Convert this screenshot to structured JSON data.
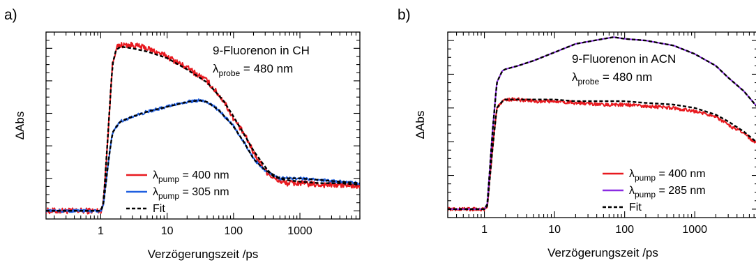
{
  "chart_data": [
    {
      "type": "line",
      "panel_label": "a)",
      "xlabel": "Verzögerungszeit /ps",
      "ylabel": "ΔAbs",
      "xscale": "log",
      "xlim": [
        0.15,
        8000
      ],
      "ylim": [
        -0.05,
        1.1
      ],
      "x_ticks": [
        1,
        10,
        100,
        1000
      ],
      "x_tick_labels": [
        "1",
        "10",
        "100",
        "1000"
      ],
      "y_tick_labels_shown": false,
      "annotation_line1": "9-Fluorenon in CH",
      "annotation_probe_sym": "λ",
      "annotation_probe_sub": "probe",
      "annotation_probe_val": " = 480 nm",
      "legend": [
        {
          "sym": "λ",
          "sub": "pump",
          "val": " = 400 nm",
          "color": "#e8191f",
          "dash": false
        },
        {
          "sym": "λ",
          "sub": "pump",
          "val": " = 305 nm",
          "color": "#1f5fe0",
          "dash": false
        },
        {
          "sym": "",
          "sub": "",
          "val": "Fit",
          "color": "#000000",
          "dash": true
        }
      ],
      "series": [
        {
          "color": "#e8191f",
          "noise": 0.018,
          "x": [
            0.15,
            0.5,
            1.0,
            1.1,
            1.3,
            1.5,
            1.7,
            2,
            3,
            5,
            10,
            20,
            40,
            70,
            100,
            150,
            200,
            300,
            400,
            600,
            1000,
            2000,
            4000,
            8000
          ],
          "y": [
            0.0,
            0.0,
            0.0,
            0.05,
            0.5,
            0.9,
            1.0,
            1.02,
            1.02,
            1.0,
            0.95,
            0.88,
            0.8,
            0.68,
            0.57,
            0.46,
            0.36,
            0.25,
            0.2,
            0.17,
            0.17,
            0.16,
            0.16,
            0.15
          ]
        },
        {
          "color": "#1f5fe0",
          "noise": 0.009,
          "x": [
            0.15,
            0.5,
            1.0,
            1.1,
            1.3,
            1.5,
            1.8,
            2,
            3,
            5,
            10,
            20,
            30,
            40,
            60,
            100,
            150,
            200,
            300,
            500,
            1000,
            2000,
            4000,
            8000
          ],
          "y": [
            0.0,
            0.0,
            0.0,
            0.04,
            0.3,
            0.48,
            0.53,
            0.55,
            0.58,
            0.61,
            0.64,
            0.67,
            0.68,
            0.67,
            0.62,
            0.52,
            0.41,
            0.32,
            0.25,
            0.2,
            0.2,
            0.19,
            0.18,
            0.17
          ]
        },
        {
          "color": "#000000",
          "dash": true,
          "x": [
            0.15,
            0.5,
            1.0,
            1.1,
            1.3,
            1.5,
            1.7,
            2,
            3,
            5,
            10,
            20,
            40,
            70,
            100,
            150,
            200,
            300,
            400,
            600,
            1000,
            2000,
            4000,
            8000
          ],
          "y": [
            0.0,
            0.0,
            0.0,
            0.05,
            0.5,
            0.9,
            0.99,
            1.01,
            1.0,
            0.98,
            0.94,
            0.87,
            0.79,
            0.68,
            0.58,
            0.46,
            0.37,
            0.27,
            0.21,
            0.19,
            0.18,
            0.17,
            0.17,
            0.16
          ]
        },
        {
          "color": "#000000",
          "dash": true,
          "x": [
            0.15,
            0.5,
            1.0,
            1.1,
            1.3,
            1.5,
            1.8,
            2,
            3,
            5,
            10,
            20,
            30,
            40,
            60,
            100,
            150,
            200,
            300,
            500,
            1000,
            2000,
            4000,
            8000
          ],
          "y": [
            0.0,
            0.0,
            0.0,
            0.04,
            0.3,
            0.48,
            0.53,
            0.55,
            0.58,
            0.61,
            0.64,
            0.67,
            0.68,
            0.67,
            0.62,
            0.52,
            0.41,
            0.32,
            0.25,
            0.2,
            0.2,
            0.19,
            0.18,
            0.17
          ]
        }
      ]
    },
    {
      "type": "line",
      "panel_label": "b)",
      "xlabel": "Verzögerungszeit /ps",
      "ylabel": "ΔAbs",
      "xscale": "log",
      "xlim": [
        0.3,
        8000
      ],
      "ylim": [
        -0.05,
        1.05
      ],
      "x_ticks": [
        1,
        10,
        100,
        1000
      ],
      "x_tick_labels": [
        "1",
        "10",
        "100",
        "1000"
      ],
      "y_tick_labels_shown": false,
      "annotation_line1": "9-Fluorenon in ACN",
      "annotation_probe_sym": "λ",
      "annotation_probe_sub": "probe",
      "annotation_probe_val": " = 480 nm",
      "legend": [
        {
          "sym": "λ",
          "sub": "pump",
          "val": " = 400 nm",
          "color": "#e8191f",
          "dash": false
        },
        {
          "sym": "λ",
          "sub": "pump",
          "val": " = 285 nm",
          "color": "#8a2be2",
          "dash": false
        },
        {
          "sym": "",
          "sub": "",
          "val": "Fit",
          "color": "#000000",
          "dash": true
        }
      ],
      "series": [
        {
          "color": "#e8191f",
          "noise": 0.01,
          "x": [
            0.3,
            0.5,
            1.0,
            1.1,
            1.3,
            1.5,
            1.8,
            2,
            3,
            5,
            10,
            20,
            50,
            100,
            200,
            500,
            1000,
            2000,
            3000,
            5000,
            8000
          ],
          "y": [
            0.0,
            0.0,
            0.0,
            0.02,
            0.35,
            0.6,
            0.64,
            0.65,
            0.65,
            0.64,
            0.64,
            0.63,
            0.62,
            0.62,
            0.61,
            0.6,
            0.58,
            0.55,
            0.5,
            0.45,
            0.38
          ]
        },
        {
          "color": "#8a2be2",
          "noise": 0.0,
          "x": [
            0.3,
            0.5,
            1.0,
            1.1,
            1.3,
            1.5,
            1.8,
            2,
            3,
            5,
            10,
            20,
            50,
            70,
            100,
            200,
            500,
            1000,
            2000,
            3000,
            5000,
            8000
          ],
          "y": [
            0.0,
            0.0,
            0.0,
            0.03,
            0.45,
            0.75,
            0.82,
            0.83,
            0.85,
            0.88,
            0.93,
            0.98,
            1.01,
            1.02,
            1.01,
            1.0,
            0.97,
            0.92,
            0.85,
            0.78,
            0.7,
            0.6
          ]
        },
        {
          "color": "#000000",
          "dash": true,
          "x": [
            0.3,
            0.5,
            1.0,
            1.1,
            1.3,
            1.5,
            1.8,
            2,
            3,
            5,
            10,
            20,
            50,
            100,
            200,
            500,
            1000,
            2000,
            3000,
            5000,
            8000
          ],
          "y": [
            0.0,
            0.0,
            0.0,
            0.02,
            0.35,
            0.6,
            0.64,
            0.65,
            0.65,
            0.65,
            0.65,
            0.64,
            0.64,
            0.64,
            0.63,
            0.62,
            0.6,
            0.56,
            0.52,
            0.46,
            0.39
          ]
        },
        {
          "color": "#000000",
          "dash": true,
          "x": [
            0.3,
            0.5,
            1.0,
            1.1,
            1.3,
            1.5,
            1.8,
            2,
            3,
            5,
            10,
            20,
            50,
            70,
            100,
            200,
            500,
            1000,
            2000,
            3000,
            5000,
            8000
          ],
          "y": [
            0.0,
            0.0,
            0.0,
            0.03,
            0.45,
            0.75,
            0.82,
            0.83,
            0.85,
            0.88,
            0.93,
            0.98,
            1.01,
            1.02,
            1.01,
            1.0,
            0.97,
            0.92,
            0.85,
            0.78,
            0.7,
            0.6
          ]
        }
      ]
    }
  ]
}
